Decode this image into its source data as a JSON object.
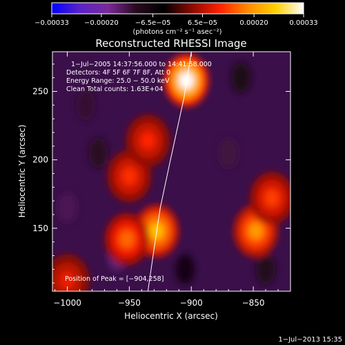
{
  "chart_data": {
    "type": "heatmap",
    "title": "Reconstructed RHESSI Image",
    "xlabel": "Heliocentric X (arcsec)",
    "ylabel": "Heliocentric Y (arcsec)",
    "xlim": [
      -1012,
      -820
    ],
    "ylim": [
      104,
      279
    ],
    "x_ticks": [
      -1000,
      -950,
      -900,
      -850
    ],
    "y_ticks": [
      150,
      200,
      250
    ],
    "x_tick_labels": [
      "−1000",
      "−950",
      "−900",
      "−850"
    ],
    "y_tick_labels": [
      "150",
      "200",
      "250"
    ],
    "colorbar": {
      "range": [
        -0.00033,
        0.00033
      ],
      "ticks": [
        -0.00033,
        -0.0002,
        -6.5e-05,
        6.5e-05,
        0.0002,
        0.00033
      ],
      "tick_labels": [
        "−0.00033",
        "−0.00020",
        "−6.5e−05",
        "6.5e−05",
        "0.00020",
        "0.00033"
      ],
      "units_label": "(photons cm⁻² s⁻¹ asec⁻²)",
      "colors": [
        "#0000ff",
        "#5a23c8",
        "#7a2a9a",
        "#2a0a20",
        "#000000",
        "#8a0a00",
        "#ff2000",
        "#ff8a00",
        "#ffd000",
        "#ffffff"
      ]
    },
    "annotations": {
      "time_range": "1−Jul−2005 14:37:56.000 to 14:41:58.000",
      "detectors": "Detectors: 4F 5F 6F 7F 8F, Att 0",
      "energy_range": "Energy Range: 25.0 − 50.0 keV",
      "clean": "Clean    Total counts: 1.63E+04",
      "peak": "Position of Peak = [−904,258]"
    },
    "peak": {
      "x": -904,
      "y": 258
    },
    "bright_sources": [
      {
        "x": -904,
        "y": 258,
        "value": 0.00033
      },
      {
        "x": -928,
        "y": 148,
        "value": 0.00024
      },
      {
        "x": -848,
        "y": 148,
        "value": 0.0002
      },
      {
        "x": -952,
        "y": 142,
        "value": 0.00016
      },
      {
        "x": -835,
        "y": 172,
        "value": 0.00013
      },
      {
        "x": -950,
        "y": 188,
        "value": 0.00012
      },
      {
        "x": -1000,
        "y": 112,
        "value": 0.0001
      },
      {
        "x": -935,
        "y": 214,
        "value": 0.00011
      }
    ],
    "limb_curve": [
      [
        -935,
        104
      ],
      [
        -930,
        135
      ],
      [
        -925,
        165
      ],
      [
        -918,
        195
      ],
      [
        -912,
        220
      ],
      [
        -906,
        245
      ],
      [
        -900,
        279
      ]
    ],
    "footer": "1−Jul−2013 15:35"
  }
}
